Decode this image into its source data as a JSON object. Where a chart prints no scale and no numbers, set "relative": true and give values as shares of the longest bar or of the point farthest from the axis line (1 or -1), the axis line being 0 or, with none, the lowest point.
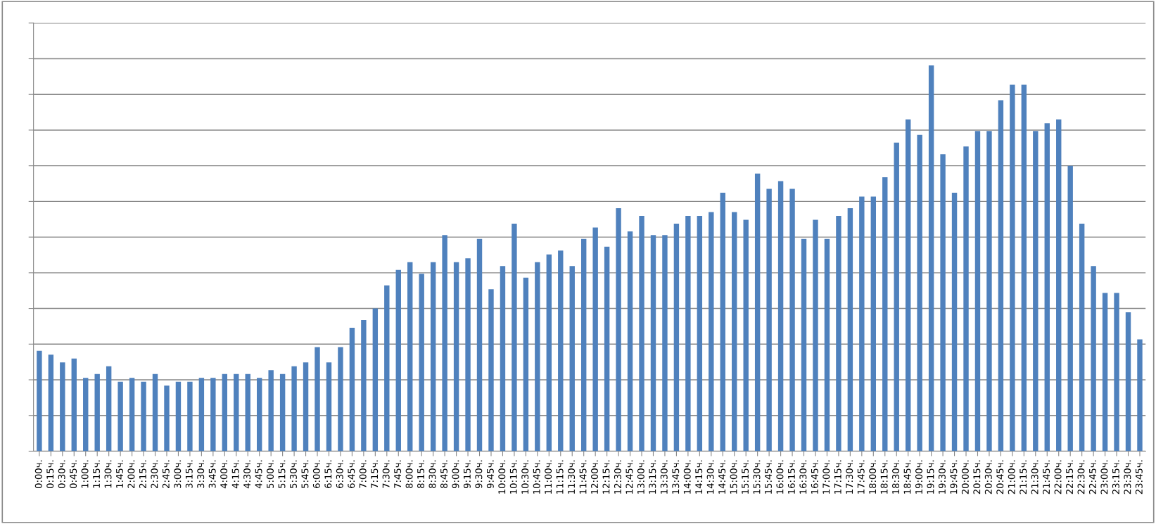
{
  "chart_data": {
    "type": "bar",
    "relative": true,
    "color": "#4f81bd",
    "grid": "y",
    "legend": false,
    "categories": [
      "0:00ч.",
      "0:15ч.",
      "0:30ч.",
      "0:45ч.",
      "1:00ч.",
      "1:15ч.",
      "1:30ч.",
      "1:45ч.",
      "2:00ч.",
      "2:15ч.",
      "2:30ч.",
      "2:45ч.",
      "3:00ч.",
      "3:15ч.",
      "3:30ч.",
      "3:45ч.",
      "4:00ч.",
      "4:15ч.",
      "4:30ч.",
      "4:45ч.",
      "5:00ч.",
      "5:15ч.",
      "5:30ч.",
      "5:45ч.",
      "6:00ч.",
      "6:15ч.",
      "6:30ч.",
      "6:45ч.",
      "7:00ч.",
      "7:15ч.",
      "7:30ч.",
      "7:45ч.",
      "8:00ч.",
      "8:15ч.",
      "8:30ч.",
      "8:45ч.",
      "9:00ч.",
      "9:15ч.",
      "9:30ч.",
      "9:45ч.",
      "10:00ч.",
      "10:15ч.",
      "10:30ч.",
      "10:45ч.",
      "11:00ч.",
      "11:15ч.",
      "11:30ч.",
      "11:45ч.",
      "12:00ч.",
      "12:15ч.",
      "12:30ч.",
      "12:45ч.",
      "13:00ч.",
      "13:15ч.",
      "13:30ч.",
      "13:45ч.",
      "14:00ч.",
      "14:15ч.",
      "14:30ч.",
      "14:45ч.",
      "15:00ч.",
      "15:15ч.",
      "15:30ч.",
      "15:45ч.",
      "16:00ч.",
      "16:15ч.",
      "16:30ч.",
      "16:45ч.",
      "17:00ч.",
      "17:15ч.",
      "17:30ч.",
      "17:45ч.",
      "18:00ч.",
      "18:15ч.",
      "18:30ч.",
      "18:45ч.",
      "19:00ч.",
      "19:15ч.",
      "19:30ч.",
      "19:45ч.",
      "20:00ч.",
      "20:15ч.",
      "20:30ч.",
      "20:45ч.",
      "21:00ч.",
      "21:15ч.",
      "21:30ч.",
      "21:45ч.",
      "22:00ч.",
      "22:15ч.",
      "22:30ч.",
      "22:45ч.",
      "23:00ч.",
      "23:15ч.",
      "23:30ч.",
      "23:45ч."
    ],
    "values": [
      0.26,
      0.25,
      0.23,
      0.24,
      0.19,
      0.2,
      0.22,
      0.18,
      0.19,
      0.18,
      0.2,
      0.17,
      0.18,
      0.18,
      0.19,
      0.19,
      0.2,
      0.2,
      0.2,
      0.19,
      0.21,
      0.2,
      0.22,
      0.23,
      0.27,
      0.23,
      0.27,
      0.32,
      0.34,
      0.37,
      0.43,
      0.47,
      0.49,
      0.46,
      0.49,
      0.56,
      0.49,
      0.5,
      0.55,
      0.42,
      0.48,
      0.59,
      0.45,
      0.49,
      0.51,
      0.52,
      0.48,
      0.55,
      0.58,
      0.53,
      0.63,
      0.57,
      0.61,
      0.56,
      0.56,
      0.59,
      0.61,
      0.61,
      0.62,
      0.67,
      0.62,
      0.6,
      0.72,
      0.68,
      0.7,
      0.68,
      0.55,
      0.6,
      0.55,
      0.61,
      0.63,
      0.66,
      0.66,
      0.71,
      0.8,
      0.86,
      0.82,
      1,
      0.77,
      0.67,
      0.79,
      0.83,
      0.83,
      0.91,
      0.95,
      0.95,
      0.83,
      0.85,
      0.86,
      0.74,
      0.59,
      0.48,
      0.41,
      0.41,
      0.36,
      0.29
    ]
  }
}
